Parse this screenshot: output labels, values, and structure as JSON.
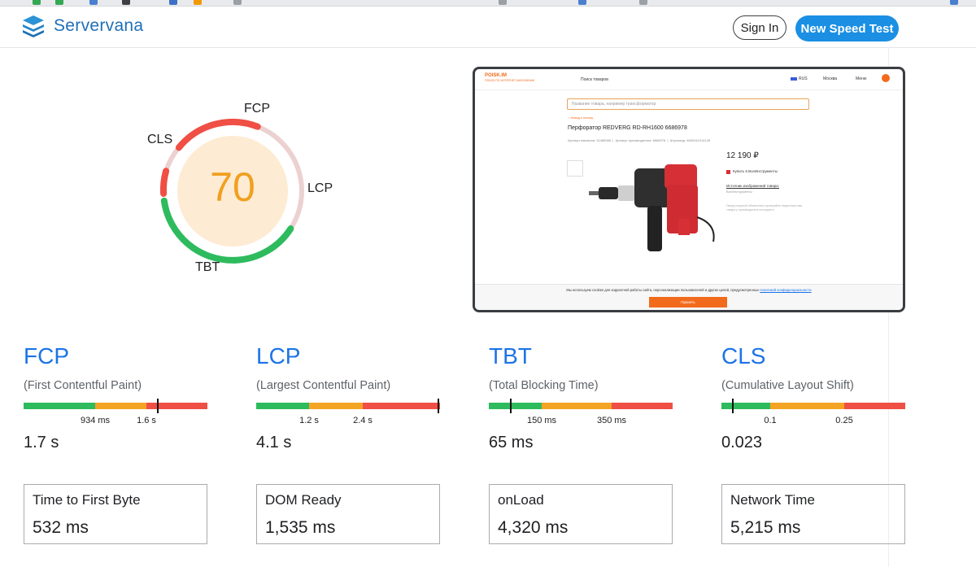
{
  "header": {
    "brand": "Servervana",
    "signin_label": "Sign In",
    "new_test_label": "New Speed Test"
  },
  "gauge": {
    "score": "70",
    "score_color": "#f0a020",
    "labels": {
      "fcp": "FCP",
      "lcp": "LCP",
      "tbt": "TBT",
      "cls": "CLS"
    }
  },
  "preview": {
    "logo_title": "POISK.IM",
    "logo_sub": "ПОИСК ПО ИНТЕРНЕТ-МАГАЗИНАМ",
    "nav_search": "Поиск товаров",
    "nav_lang": "RUS",
    "nav_city": "Москва",
    "nav_menu": "Меню",
    "search_placeholder": "Название товара, например трансформатор",
    "back_link": "‹ Назад к поиску",
    "product_title": "Перфоратор REDVERG RD-RH1600 6686978",
    "meta1": "Артикул магазина: 31468366",
    "meta2": "Артикул производителя: 6686978",
    "meta3": "Штрихкод: 4660241014128",
    "price": "12 190 ₽",
    "buy_link": "Купить в ВсеИнструменты",
    "img_source": "Источник изображений товара:",
    "img_source_sub": "ВсеИнструменты",
    "notice": "Перед покупкой обязательно проверяйте характеристики товара у производителя последнего",
    "cookie_text": "Мы используем cookies для корректной работы сайта, персонализации пользователей и других целей, предусмотренных",
    "cookie_link": "политикой конфиденциальности",
    "accept_label": "Принять"
  },
  "metrics": [
    {
      "abbr": "FCP",
      "full": "(First Contentful Paint)",
      "value": "1.7 s",
      "tick1": "934 ms",
      "tick2": "1.6 s",
      "marker_percent": 73
    },
    {
      "abbr": "LCP",
      "full": "(Largest Contentful Paint)",
      "value": "4.1 s",
      "tick1": "1.2 s",
      "tick2": "2.4 s",
      "marker_percent": 99
    },
    {
      "abbr": "TBT",
      "full": "(Total Blocking Time)",
      "value": "65 ms",
      "tick1": "150 ms",
      "tick2": "350 ms",
      "marker_percent": 12
    },
    {
      "abbr": "CLS",
      "full": "(Cumulative Layout Shift)",
      "value": "0.023",
      "tick1": "0.1",
      "tick2": "0.25",
      "marker_percent": 6
    }
  ],
  "stats": [
    {
      "label": "Time to First Byte",
      "value": "532 ms"
    },
    {
      "label": "DOM Ready",
      "value": "1,535 ms"
    },
    {
      "label": "onLoad",
      "value": "4,320 ms"
    },
    {
      "label": "Network Time",
      "value": "5,215 ms"
    }
  ],
  "colors": {
    "good": "#2ebb5e",
    "needs_improvement": "#f4a423",
    "poor": "#ef4f45",
    "accent": "#1c74e6"
  }
}
